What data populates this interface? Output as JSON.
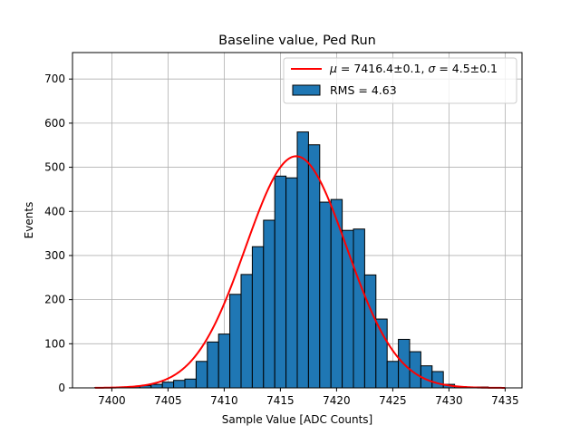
{
  "chart_data": {
    "type": "bar",
    "title": "Baseline value, Ped Run",
    "xlabel": "Sample Value [ADC Counts]",
    "ylabel": "Events",
    "xlim": [
      7396.5,
      7436.5
    ],
    "ylim": [
      0,
      760
    ],
    "xticks": [
      7400,
      7405,
      7410,
      7415,
      7420,
      7425,
      7430,
      7435
    ],
    "yticks": [
      0,
      100,
      200,
      300,
      400,
      500,
      600,
      700
    ],
    "grid": true,
    "legend_position": "top-right",
    "colors": {
      "bar_fill": "#1f77b4",
      "bar_edge": "#000000",
      "fit_line": "#ff0000",
      "grid": "#b0b0b0"
    },
    "histogram": {
      "bin_width": 1,
      "bin_starts": [
        7398.5,
        7399.5,
        7400.5,
        7401.5,
        7402.5,
        7403.5,
        7404.5,
        7405.5,
        7406.5,
        7407.5,
        7408.5,
        7409.5,
        7410.5,
        7411.5,
        7412.5,
        7413.5,
        7414.5,
        7415.5,
        7416.5,
        7417.5,
        7418.5,
        7419.5,
        7420.5,
        7421.5,
        7422.5,
        7423.5,
        7424.5,
        7425.5,
        7426.5,
        7427.5,
        7428.5,
        7429.5,
        7430.5,
        7431.5,
        7432.5,
        7433.5,
        7434.5
      ],
      "counts": [
        1,
        1,
        2,
        3,
        5,
        8,
        13,
        17,
        20,
        60,
        104,
        122,
        212,
        257,
        320,
        380,
        480,
        476,
        580,
        551,
        421,
        427,
        357,
        360,
        256,
        156,
        60,
        110,
        82,
        50,
        37,
        8,
        3,
        2,
        2,
        1,
        0
      ]
    },
    "fit": {
      "type": "gaussian",
      "mu": 7416.4,
      "sigma": 4.5,
      "amplitude": 525,
      "x_range": [
        7398.5,
        7435
      ]
    },
    "legend": [
      {
        "kind": "line",
        "label": "$\\mu = 7416.4\\pm0.1$, $\\sigma = 4.5\\pm0.1$",
        "parts": {
          "mu_sym": "μ",
          "mu_rest": " = 7416.4±0.1, ",
          "sigma_sym": "σ",
          "sigma_rest": " = 4.5±0.1"
        }
      },
      {
        "kind": "patch",
        "label": "RMS = 4.63"
      }
    ]
  }
}
